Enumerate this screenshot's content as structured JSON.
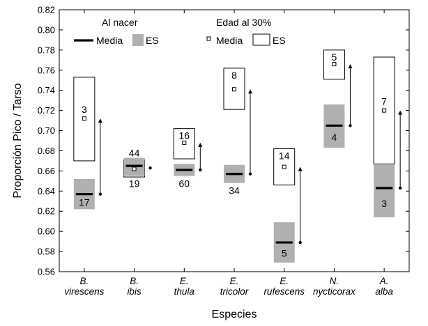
{
  "chart_data": {
    "type": "box",
    "xlabel": "Especies",
    "ylabel": "Proporción Pico / Tarso",
    "ylim": [
      0.56,
      0.82
    ],
    "yticks": [
      "0.56",
      "0.58",
      "0.60",
      "0.62",
      "0.64",
      "0.66",
      "0.68",
      "0.70",
      "0.72",
      "0.74",
      "0.76",
      "0.78",
      "0.80",
      "0.82"
    ],
    "grid": false,
    "legend": {
      "placement": "top",
      "groups": [
        {
          "title": "Al nacer",
          "entries": [
            "Media",
            "ES"
          ]
        },
        {
          "title": "Edad al 30%",
          "entries": [
            "Media",
            "ES"
          ]
        }
      ]
    },
    "colors": {
      "birth_se_fill": "#b0b0b0",
      "adult_se_fill": "#ffffff",
      "mean_line": "#000000",
      "arrow": "#000000"
    },
    "categories": [
      {
        "line1": "B.",
        "line2": "virescens"
      },
      {
        "line1": "B.",
        "line2": "ibis"
      },
      {
        "line1": "E.",
        "line2": "thula"
      },
      {
        "line1": "E.",
        "line2": "tricolor"
      },
      {
        "line1": "E.",
        "line2": "rufescens"
      },
      {
        "line1": "N.",
        "line2": "nycticorax"
      },
      {
        "line1": "A.",
        "line2": "alba"
      }
    ],
    "series": [
      {
        "name": "Al nacer",
        "mean": [
          0.637,
          0.665,
          0.661,
          0.657,
          0.589,
          0.705,
          0.643
        ],
        "se_low": [
          0.622,
          0.655,
          0.655,
          0.648,
          0.569,
          0.683,
          0.614
        ],
        "se_high": [
          0.652,
          0.673,
          0.667,
          0.666,
          0.609,
          0.726,
          0.667
        ],
        "n": [
          "17",
          "19",
          "60",
          "34",
          "5",
          "4",
          "3"
        ]
      },
      {
        "name": "Edad al 30%",
        "mean": [
          0.712,
          0.662,
          0.688,
          0.741,
          0.664,
          0.766,
          0.72
        ],
        "se_low": [
          0.67,
          0.654,
          0.672,
          0.721,
          0.646,
          0.751,
          0.667
        ],
        "se_high": [
          0.753,
          0.671,
          0.702,
          0.762,
          0.682,
          0.78,
          0.773
        ],
        "n": [
          "3",
          "44",
          "16",
          "8",
          "14",
          "5",
          "7"
        ]
      }
    ],
    "arrows": [
      {
        "from": 0.637,
        "to": 0.712
      },
      {
        "from": 0.663,
        "to": 0.663
      },
      {
        "from": 0.661,
        "to": 0.688
      },
      {
        "from": 0.657,
        "to": 0.741
      },
      {
        "from": 0.589,
        "to": 0.664
      },
      {
        "from": 0.705,
        "to": 0.766
      },
      {
        "from": 0.643,
        "to": 0.72
      }
    ]
  }
}
